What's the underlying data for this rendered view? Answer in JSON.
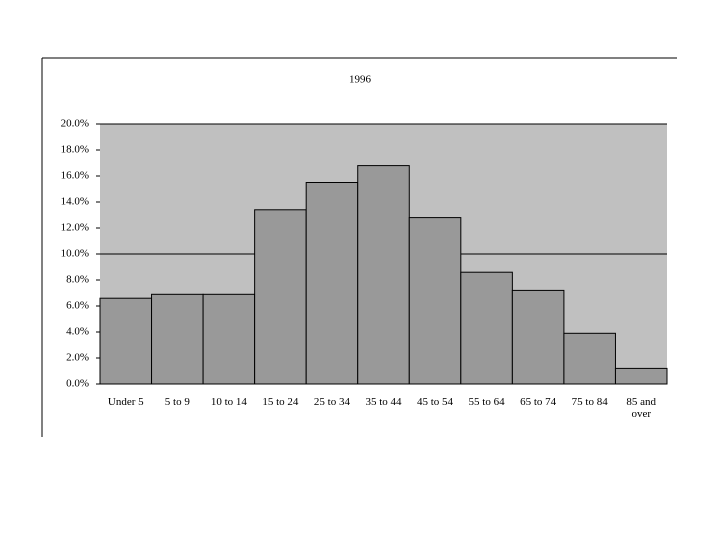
{
  "chart_data": {
    "type": "bar",
    "title": "1996",
    "categories": [
      "Under 5",
      "5 to 9",
      "10 to 14",
      "15 to 24",
      "25 to 34",
      "35 to 44",
      "45 to 54",
      "55 to 64",
      "65 to 74",
      "75 to 84",
      "85 and over"
    ],
    "values": [
      6.6,
      6.9,
      6.9,
      13.4,
      15.5,
      16.8,
      12.8,
      8.6,
      7.2,
      3.9,
      1.2
    ],
    "color": "#999999",
    "plot_background": "#c0c0c0",
    "ylim": [
      0,
      20
    ],
    "yticks": [
      {
        "value": 0,
        "label": "0.0%"
      },
      {
        "value": 2,
        "label": "2.0%"
      },
      {
        "value": 4,
        "label": "4.0%"
      },
      {
        "value": 6,
        "label": "6.0%"
      },
      {
        "value": 8,
        "label": "8.0%"
      },
      {
        "value": 10,
        "label": "10.0%"
      },
      {
        "value": 12,
        "label": "12.0%"
      },
      {
        "value": 14,
        "label": "14.0%"
      },
      {
        "value": 16,
        "label": "16.0%"
      },
      {
        "value": 18,
        "label": "18.0%"
      },
      {
        "value": 20,
        "label": "20.0%"
      }
    ],
    "ygrid": [
      10,
      20
    ]
  }
}
